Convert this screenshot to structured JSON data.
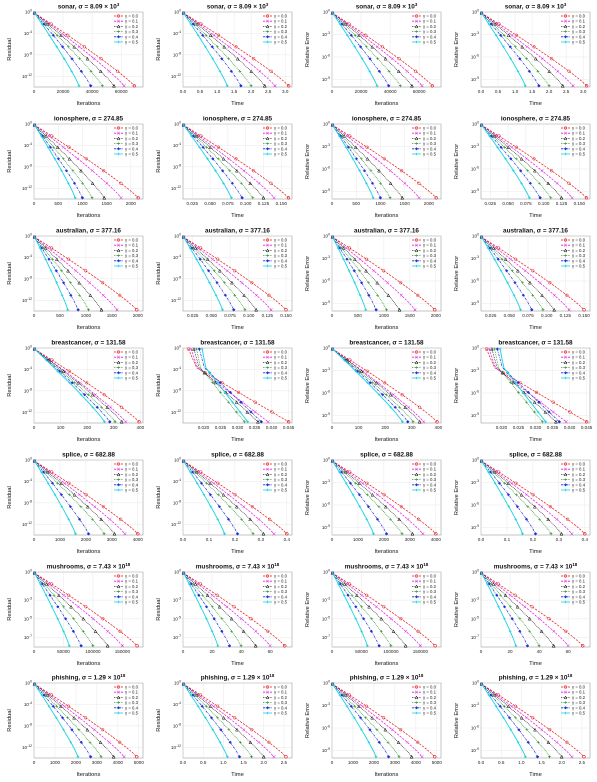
{
  "legend_labels": [
    "γ = 0.0",
    "γ = 0.1",
    "γ = 0.2",
    "γ = 0.3",
    "γ = 0.4",
    "γ = 0.5"
  ],
  "series_colors": [
    "#e31a1c",
    "#e31ae3",
    "#111111",
    "#1a8a1a",
    "#1f2fd6",
    "#19d3e0"
  ],
  "series_styles": [
    "dashed-circle",
    "dashed-x",
    "dotted-triangle",
    "dotted-plus",
    "dashdot-diamond",
    "solid-star"
  ],
  "datasets": [
    {
      "name": "sonar",
      "sigma_prefix": "σ = 8.09 × 10",
      "sigma_exp": "3"
    },
    {
      "name": "ionosphere",
      "sigma_prefix": "σ = 274.85",
      "sigma_exp": ""
    },
    {
      "name": "australian",
      "sigma_prefix": "σ = 377.16",
      "sigma_exp": ""
    },
    {
      "name": "breastcancer",
      "sigma_prefix": "σ = 131.58",
      "sigma_exp": ""
    },
    {
      "name": "splice",
      "sigma_prefix": "σ = 682.88",
      "sigma_exp": ""
    },
    {
      "name": "mushrooms",
      "sigma_prefix": "σ = 7.43 × 10",
      "sigma_exp": "18"
    },
    {
      "name": "phishing",
      "sigma_prefix": "σ = 1.29 × 10",
      "sigma_exp": "18"
    }
  ],
  "column_axes": [
    {
      "xlabel": "Iterations",
      "ylabel": "Residual"
    },
    {
      "xlabel": "Time",
      "ylabel": "Residual"
    },
    {
      "xlabel": "Iterations",
      "ylabel": "Relative Error"
    },
    {
      "xlabel": "Time",
      "ylabel": "Relative Error"
    }
  ],
  "chart_data": [
    {
      "type": "line",
      "dataset": "sonar",
      "xlabel": "Iterations",
      "ylabel": "Residual",
      "xticks": [
        "0",
        "20000",
        "40000",
        "60000"
      ],
      "xlim": [
        0,
        75000
      ],
      "yticks": [
        "10^0",
        "10^-4",
        "10^-8",
        "10^-12"
      ],
      "ylim_exp": [
        -14,
        0
      ],
      "log_y": true,
      "end_x": [
        69000,
        62000,
        55000,
        47000,
        39000,
        31000
      ],
      "y_end_exp": -14
    },
    {
      "type": "line",
      "dataset": "sonar",
      "xlabel": "Time",
      "ylabel": "Residual",
      "xticks": [
        "0.0",
        "0.5",
        "1.0",
        "1.5",
        "2.0",
        "2.5",
        "3.0"
      ],
      "xlim": [
        0,
        3.2
      ],
      "yticks": [
        "10^0",
        "10^-4",
        "10^-8",
        "10^-12"
      ],
      "ylim_exp": [
        -14,
        0
      ],
      "log_y": true,
      "end_x": [
        3.1,
        2.7,
        2.4,
        2.0,
        1.7,
        1.3
      ],
      "y_end_exp": -14
    },
    {
      "type": "line",
      "dataset": "sonar",
      "xlabel": "Iterations",
      "ylabel": "Relative Error",
      "xticks": [
        "0",
        "20000",
        "40000",
        "60000"
      ],
      "xlim": [
        0,
        75000
      ],
      "yticks": [
        "10^0",
        "10^-3",
        "10^-6",
        "10^-9"
      ],
      "ylim_exp": [
        -10,
        0
      ],
      "log_y": true,
      "end_x": [
        69000,
        62000,
        55000,
        47000,
        39000,
        31000
      ],
      "y_end_exp": -10
    },
    {
      "type": "line",
      "dataset": "sonar",
      "xlabel": "Time",
      "ylabel": "Relative Error",
      "xticks": [
        "0.0",
        "0.5",
        "1.0",
        "1.5",
        "2.0",
        "2.5",
        "3.0"
      ],
      "xlim": [
        0,
        3.2
      ],
      "yticks": [
        "10^0",
        "10^-3",
        "10^-6",
        "10^-9"
      ],
      "ylim_exp": [
        -10,
        0
      ],
      "log_y": true,
      "end_x": [
        3.1,
        2.7,
        2.4,
        2.0,
        1.7,
        1.3
      ],
      "y_end_exp": -10
    },
    {
      "type": "line",
      "dataset": "ionosphere",
      "xlabel": "Iterations",
      "ylabel": "Residual",
      "xticks": [
        "0",
        "500",
        "1000",
        "1500",
        "2000"
      ],
      "xlim": [
        0,
        2250
      ],
      "yticks": [
        "10^0",
        "10^-4",
        "10^-8",
        "10^-12"
      ],
      "ylim_exp": [
        -14,
        0
      ],
      "log_y": true,
      "end_x": [
        2150,
        1800,
        1450,
        1200,
        1000,
        850
      ],
      "y_end_exp": -14
    },
    {
      "type": "line",
      "dataset": "ionosphere",
      "xlabel": "Time",
      "ylabel": "Residual",
      "xticks": [
        "0.025",
        "0.050",
        "0.075",
        "0.100",
        "0.125",
        "0.150"
      ],
      "xlim": [
        0.012,
        0.165
      ],
      "yticks": [
        "10^0",
        "10^-4",
        "10^-8",
        "10^-12"
      ],
      "ylim_exp": [
        -14,
        0
      ],
      "log_y": true,
      "end_x": [
        0.16,
        0.14,
        0.125,
        0.11,
        0.095,
        0.08
      ],
      "y_end_exp": -14
    },
    {
      "type": "line",
      "dataset": "ionosphere",
      "xlabel": "Iterations",
      "ylabel": "Relative Error",
      "xticks": [
        "0",
        "500",
        "1000",
        "1500",
        "2000"
      ],
      "xlim": [
        0,
        2250
      ],
      "yticks": [
        "10^0",
        "10^-3",
        "10^-6",
        "10^-9"
      ],
      "ylim_exp": [
        -10,
        0
      ],
      "log_y": true,
      "end_x": [
        2150,
        1800,
        1450,
        1200,
        1000,
        850
      ],
      "y_end_exp": -10
    },
    {
      "type": "line",
      "dataset": "ionosphere",
      "xlabel": "Time",
      "ylabel": "Relative Error",
      "xticks": [
        "0.025",
        "0.050",
        "0.075",
        "0.100",
        "0.125",
        "0.150"
      ],
      "xlim": [
        0.012,
        0.165
      ],
      "yticks": [
        "10^0",
        "10^-3",
        "10^-6",
        "10^-9"
      ],
      "ylim_exp": [
        -10,
        0
      ],
      "log_y": true,
      "end_x": [
        0.16,
        0.14,
        0.125,
        0.11,
        0.095,
        0.08
      ],
      "y_end_exp": -10
    },
    {
      "type": "line",
      "dataset": "australian",
      "xlabel": "Iterations",
      "ylabel": "Residual",
      "xticks": [
        "0",
        "500",
        "1000",
        "1500",
        "2000"
      ],
      "xlim": [
        0,
        2100
      ],
      "yticks": [
        "10^0",
        "10^-4",
        "10^-8",
        "10^-12"
      ],
      "ylim_exp": [
        -14,
        0
      ],
      "log_y": true,
      "end_x": [
        1980,
        1600,
        1300,
        1050,
        850,
        650
      ],
      "y_end_exp": -14
    },
    {
      "type": "line",
      "dataset": "australian",
      "xlabel": "Time",
      "ylabel": "Residual",
      "xticks": [
        "0.025",
        "0.050",
        "0.075",
        "0.100",
        "0.125",
        "0.150"
      ],
      "xlim": [
        0.012,
        0.158
      ],
      "yticks": [
        "10^0",
        "10^-4",
        "10^-8",
        "10^-12"
      ],
      "ylim_exp": [
        -14,
        0
      ],
      "log_y": true,
      "end_x": [
        0.15,
        0.13,
        0.11,
        0.095,
        0.08,
        0.065
      ],
      "y_end_exp": -14
    },
    {
      "type": "line",
      "dataset": "australian",
      "xlabel": "Iterations",
      "ylabel": "Relative Error",
      "xticks": [
        "0",
        "500",
        "1000",
        "1500",
        "2000"
      ],
      "xlim": [
        0,
        2100
      ],
      "yticks": [
        "10^0",
        "10^-3",
        "10^-6",
        "10^-9"
      ],
      "ylim_exp": [
        -10,
        0
      ],
      "log_y": true,
      "end_x": [
        1980,
        1600,
        1300,
        1050,
        850,
        650
      ],
      "y_end_exp": -10
    },
    {
      "type": "line",
      "dataset": "australian",
      "xlabel": "Time",
      "ylabel": "Relative Error",
      "xticks": [
        "0.025",
        "0.050",
        "0.075",
        "0.100",
        "0.125",
        "0.150"
      ],
      "xlim": [
        0.012,
        0.158
      ],
      "yticks": [
        "10^0",
        "10^-3",
        "10^-6",
        "10^-9"
      ],
      "ylim_exp": [
        -10,
        0
      ],
      "log_y": true,
      "end_x": [
        0.15,
        0.13,
        0.11,
        0.095,
        0.08,
        0.065
      ],
      "y_end_exp": -10
    },
    {
      "type": "line",
      "dataset": "breastcancer",
      "xlabel": "Iterations",
      "ylabel": "Residual",
      "xticks": [
        "0",
        "100",
        "200",
        "300",
        "400"
      ],
      "xlim": [
        0,
        410
      ],
      "yticks": [
        "10^0",
        "10^-4",
        "10^-8",
        "10^-12"
      ],
      "ylim_exp": [
        -14,
        0
      ],
      "log_y": true,
      "end_x": [
        395,
        345,
        330,
        305,
        285,
        265
      ],
      "y_end_exp": -14
    },
    {
      "type": "line",
      "dataset": "breastcancer",
      "xlabel": "Time",
      "ylabel": "Residual",
      "xticks": [
        "0.020",
        "0.025",
        "0.030",
        "0.035",
        "0.040",
        "0.045"
      ],
      "xlim": [
        0.014,
        0.046
      ],
      "yticks": [
        "10^0",
        "10^-4",
        "10^-8",
        "10^-12"
      ],
      "ylim_exp": [
        -14,
        0
      ],
      "log_y": true,
      "end_x": [
        0.045,
        0.039,
        0.036,
        0.032,
        0.037,
        0.033
      ],
      "y_end_exp": -14
    },
    {
      "type": "line",
      "dataset": "breastcancer",
      "xlabel": "Iterations",
      "ylabel": "Relative Error",
      "xticks": [
        "0",
        "100",
        "200",
        "300",
        "400"
      ],
      "xlim": [
        0,
        410
      ],
      "yticks": [
        "10^0",
        "10^-3",
        "10^-6",
        "10^-9"
      ],
      "ylim_exp": [
        -10,
        0
      ],
      "log_y": true,
      "end_x": [
        395,
        345,
        330,
        305,
        285,
        265
      ],
      "y_end_exp": -10
    },
    {
      "type": "line",
      "dataset": "breastcancer",
      "xlabel": "Time",
      "ylabel": "Relative Error",
      "xticks": [
        "0.020",
        "0.025",
        "0.030",
        "0.035",
        "0.040",
        "0.045"
      ],
      "xlim": [
        0.014,
        0.046
      ],
      "yticks": [
        "10^0",
        "10^-3",
        "10^-6",
        "10^-9"
      ],
      "ylim_exp": [
        -10,
        0
      ],
      "log_y": true,
      "end_x": [
        0.045,
        0.039,
        0.036,
        0.032,
        0.037,
        0.033
      ],
      "y_end_exp": -10
    },
    {
      "type": "line",
      "dataset": "splice",
      "xlabel": "Iterations",
      "ylabel": "Residual",
      "xticks": [
        "0",
        "1000",
        "2000",
        "3000",
        "4000"
      ],
      "xlim": [
        0,
        4200
      ],
      "yticks": [
        "10^0",
        "10^-4",
        "10^-8",
        "10^-12"
      ],
      "ylim_exp": [
        -14,
        0
      ],
      "log_y": true,
      "end_x": [
        4000,
        3500,
        3100,
        2700,
        2100,
        1600
      ],
      "y_end_exp": -14
    },
    {
      "type": "line",
      "dataset": "splice",
      "xlabel": "Time",
      "ylabel": "Residual",
      "xticks": [
        "0.0",
        "0.1",
        "0.2",
        "0.3",
        "0.4"
      ],
      "xlim": [
        0,
        0.42
      ],
      "yticks": [
        "10^0",
        "10^-4",
        "10^-8",
        "10^-12"
      ],
      "ylim_exp": [
        -14,
        0
      ],
      "log_y": true,
      "end_x": [
        0.4,
        0.35,
        0.31,
        0.27,
        0.21,
        0.16
      ],
      "y_end_exp": -14
    },
    {
      "type": "line",
      "dataset": "splice",
      "xlabel": "Iterations",
      "ylabel": "Relative Error",
      "xticks": [
        "0",
        "1000",
        "2000",
        "3000",
        "4000"
      ],
      "xlim": [
        0,
        4200
      ],
      "yticks": [
        "10^0",
        "10^-3",
        "10^-6",
        "10^-9"
      ],
      "ylim_exp": [
        -10,
        0
      ],
      "log_y": true,
      "end_x": [
        4000,
        3500,
        3100,
        2700,
        2100,
        1600
      ],
      "y_end_exp": -10
    },
    {
      "type": "line",
      "dataset": "splice",
      "xlabel": "Time",
      "ylabel": "Relative Error",
      "xticks": [
        "0.0",
        "0.1",
        "0.2",
        "0.3",
        "0.4"
      ],
      "xlim": [
        0,
        0.42
      ],
      "yticks": [
        "10^0",
        "10^-3",
        "10^-6",
        "10^-9"
      ],
      "ylim_exp": [
        -10,
        0
      ],
      "log_y": true,
      "end_x": [
        0.4,
        0.35,
        0.31,
        0.27,
        0.21,
        0.16
      ],
      "y_end_exp": -10
    },
    {
      "type": "line",
      "dataset": "mushrooms",
      "xlabel": "Iterations",
      "ylabel": "Residual",
      "xticks": [
        "0",
        "50000",
        "100000",
        "150000"
      ],
      "xlim": [
        0,
        185000
      ],
      "yticks": [
        "10^0",
        "10^-3",
        "10^-5",
        "10^-7"
      ],
      "ylim_exp": [
        -8,
        0
      ],
      "log_y": true,
      "end_x": [
        175000,
        150000,
        125000,
        100000,
        80000,
        60000
      ],
      "y_end_exp": -8
    },
    {
      "type": "line",
      "dataset": "mushrooms",
      "xlabel": "Time",
      "ylabel": "Residual",
      "xticks": [
        "0",
        "20",
        "40",
        "60"
      ],
      "xlim": [
        0,
        75
      ],
      "yticks": [
        "10^0",
        "10^-3",
        "10^-5",
        "10^-7"
      ],
      "ylim_exp": [
        -8,
        0
      ],
      "log_y": true,
      "end_x": [
        70,
        60,
        50,
        40,
        32,
        24
      ],
      "y_end_exp": -8
    },
    {
      "type": "line",
      "dataset": "mushrooms",
      "xlabel": "Iterations",
      "ylabel": "Relative Error",
      "xticks": [
        "0",
        "50000",
        "100000",
        "150000"
      ],
      "xlim": [
        0,
        185000
      ],
      "yticks": [
        "10^0",
        "10^-3",
        "10^-5",
        "10^-7"
      ],
      "ylim_exp": [
        -8,
        0
      ],
      "log_y": true,
      "end_x": [
        175000,
        150000,
        125000,
        100000,
        80000,
        60000
      ],
      "y_end_exp": -8
    },
    {
      "type": "line",
      "dataset": "mushrooms",
      "xlabel": "Time",
      "ylabel": "Relative Error",
      "xticks": [
        "0",
        "20",
        "40",
        "60"
      ],
      "xlim": [
        0,
        75
      ],
      "yticks": [
        "10^0",
        "10^-3",
        "10^-5",
        "10^-7"
      ],
      "ylim_exp": [
        -8,
        0
      ],
      "log_y": true,
      "end_x": [
        70,
        60,
        50,
        40,
        32,
        24
      ],
      "y_end_exp": -8
    },
    {
      "type": "line",
      "dataset": "phishing",
      "xlabel": "Iterations",
      "ylabel": "Residual",
      "xticks": [
        "0",
        "1000",
        "2000",
        "3000",
        "4000",
        "5000"
      ],
      "xlim": [
        0,
        5200
      ],
      "yticks": [
        "10^0",
        "10^-4",
        "10^-8",
        "10^-12"
      ],
      "ylim_exp": [
        -14,
        0
      ],
      "log_y": true,
      "end_x": [
        4900,
        4300,
        3800,
        3200,
        2700,
        2100
      ],
      "y_end_exp": -14
    },
    {
      "type": "line",
      "dataset": "phishing",
      "xlabel": "Time",
      "ylabel": "Residual",
      "xticks": [
        "0.0",
        "0.5",
        "1.0",
        "1.5",
        "2.0",
        "2.5"
      ],
      "xlim": [
        0,
        2.7
      ],
      "yticks": [
        "10^0",
        "10^-4",
        "10^-8",
        "10^-12"
      ],
      "ylim_exp": [
        -14,
        0
      ],
      "log_y": true,
      "end_x": [
        2.55,
        2.25,
        2.0,
        1.7,
        1.4,
        1.1
      ],
      "y_end_exp": -14
    },
    {
      "type": "line",
      "dataset": "phishing",
      "xlabel": "Iterations",
      "ylabel": "Relative Error",
      "xticks": [
        "0",
        "1000",
        "2000",
        "3000",
        "4000",
        "5000"
      ],
      "xlim": [
        0,
        5200
      ],
      "yticks": [
        "10^0",
        "10^-3",
        "10^-6",
        "10^-9"
      ],
      "ylim_exp": [
        -10,
        0
      ],
      "log_y": true,
      "end_x": [
        4900,
        4300,
        3800,
        3200,
        2700,
        2100
      ],
      "y_end_exp": -10
    },
    {
      "type": "line",
      "dataset": "phishing",
      "xlabel": "Time",
      "ylabel": "Relative Error",
      "xticks": [
        "0.0",
        "0.5",
        "1.0",
        "1.5",
        "2.0",
        "2.5"
      ],
      "xlim": [
        0,
        2.7
      ],
      "yticks": [
        "10^0",
        "10^-3",
        "10^-6",
        "10^-9"
      ],
      "ylim_exp": [
        -10,
        0
      ],
      "log_y": true,
      "end_x": [
        2.55,
        2.25,
        2.0,
        1.7,
        1.4,
        1.1
      ],
      "y_end_exp": -10
    }
  ]
}
